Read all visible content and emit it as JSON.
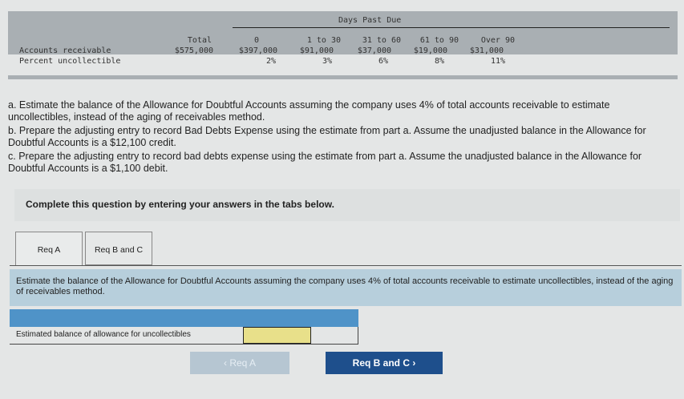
{
  "table": {
    "group_header": "Days Past Due",
    "columns": [
      "Total",
      "0",
      "1 to 30",
      "31 to 60",
      "61 to 90",
      "Over 90"
    ],
    "rows": [
      {
        "label": "Accounts receivable",
        "values": [
          "$575,000",
          "$397,000",
          "$91,000",
          "$37,000",
          "$19,000",
          "$31,000"
        ]
      },
      {
        "label": "Percent uncollectible",
        "values": [
          "",
          "2%",
          "3%",
          "6%",
          "8%",
          "11%"
        ]
      }
    ]
  },
  "questions": {
    "a": "a. Estimate the balance of the Allowance for Doubtful Accounts assuming the company uses 4% of total accounts receivable to estimate uncollectibles, instead of the aging of receivables method.",
    "b": "b. Prepare the adjusting entry to record Bad Debts Expense using the estimate from part a. Assume the unadjusted balance in the Allowance for Doubtful Accounts is a $12,100 credit.",
    "c": "c. Prepare the adjusting entry to record bad debts expense using the estimate from part a. Assume the unadjusted balance in the Allowance for Doubtful Accounts is a $1,100 debit."
  },
  "complete": "Complete this question by entering your answers in the tabs below.",
  "tabs": [
    "Req A",
    "Req B and C"
  ],
  "instruction": "Estimate the balance of the Allowance for Doubtful Accounts assuming the company uses 4% of total accounts receivable to estimate uncollectibles, instead of the aging of receivables method.",
  "entry": {
    "label": "Estimated balance of allowance for uncollectibles",
    "value": ""
  },
  "nav": {
    "prev": "Req A",
    "next": "Req B and C"
  }
}
